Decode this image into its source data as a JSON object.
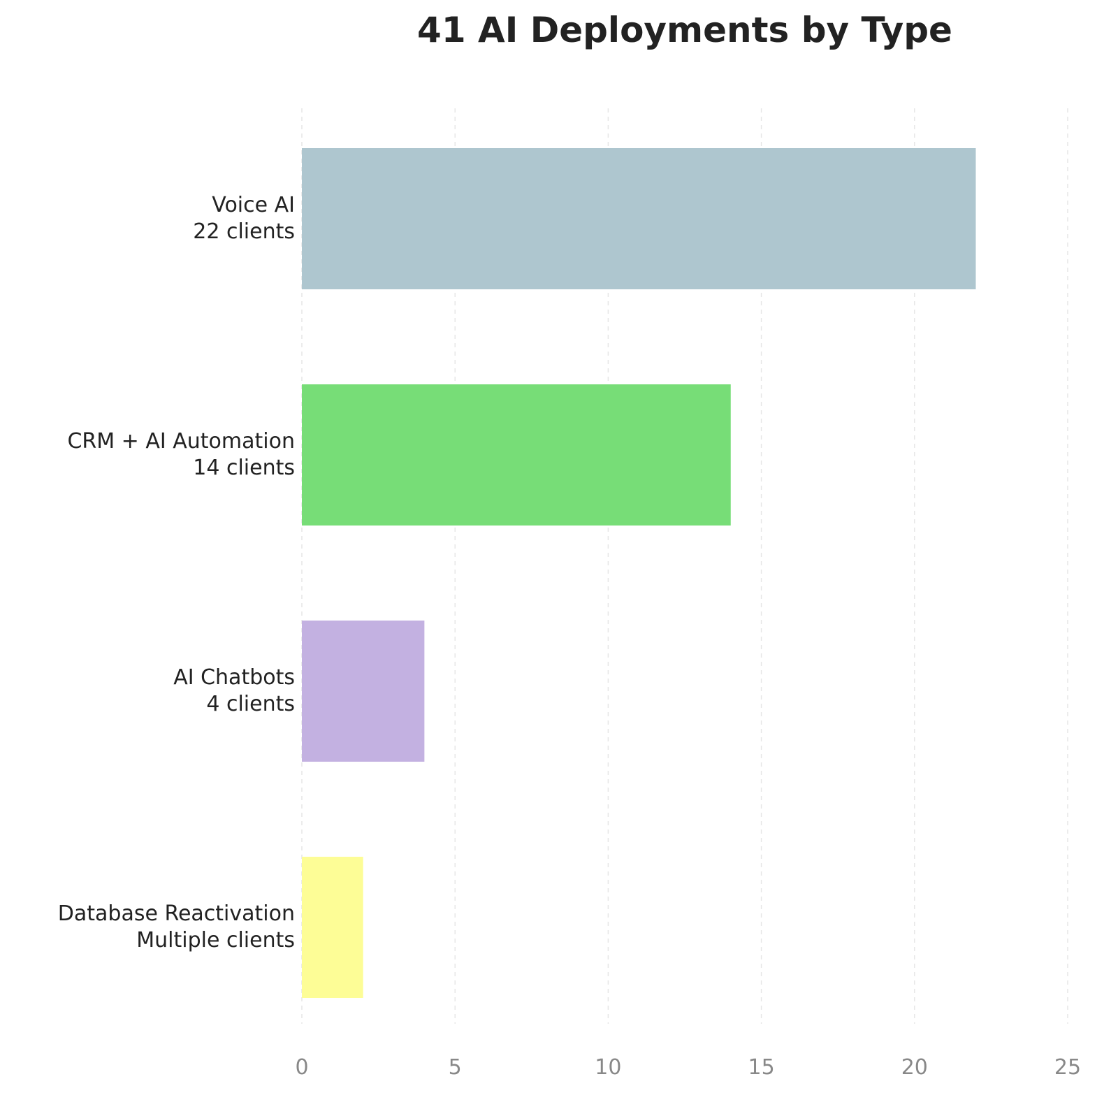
{
  "chart_data": {
    "type": "barh",
    "title": "41 AI Deployments by Type",
    "categories": [
      "Voice AI\n22 clients",
      "CRM + AI Automation\n14 clients",
      "AI Chatbots\n4 clients",
      "Database Reactivation\nMultiple clients"
    ],
    "values": [
      22,
      14,
      4,
      2
    ],
    "colors": [
      "#aec6cf",
      "#77dd77",
      "#c3b1e1",
      "#fdfd96"
    ],
    "xlim": [
      0,
      25
    ],
    "xticks": [
      0,
      5,
      10,
      15,
      20,
      25
    ],
    "grid": true
  }
}
